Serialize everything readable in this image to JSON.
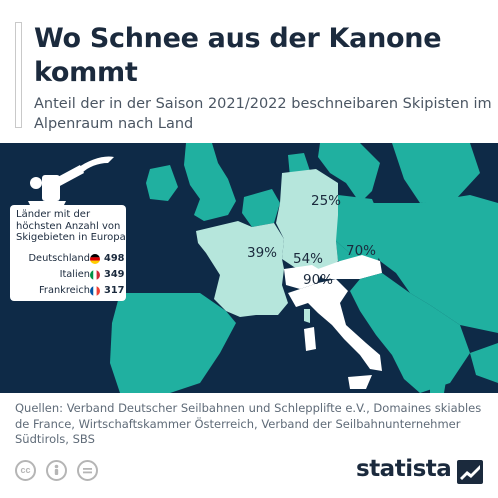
{
  "header": {
    "title": "Wo Schnee aus der Kanone kommt",
    "subtitle": "Anteil der in der Saison 2021/2022 beschneibaren Skipisten im Alpenraum nach Land"
  },
  "legend": {
    "title": "Länder mit der höchsten Anzahl von Skigebieten in Europa",
    "items": [
      {
        "country": "Deutschland",
        "count": "498"
      },
      {
        "country": "Italien",
        "count": "349"
      },
      {
        "country": "Frankreich",
        "count": "317"
      }
    ]
  },
  "chart_data": {
    "type": "map",
    "title": "Wo Schnee aus der Kanone kommt",
    "subtitle": "Anteil der in der Saison 2021/2022 beschneibaren Skipisten im Alpenraum nach Land",
    "unit": "%",
    "regions": [
      {
        "region": "Frankreich",
        "value": 39,
        "label": "39%"
      },
      {
        "region": "Deutschland",
        "value": 25,
        "label": "25%"
      },
      {
        "region": "Schweiz",
        "value": 54,
        "label": "54%"
      },
      {
        "region": "Österreich",
        "value": 70,
        "label": "70%"
      },
      {
        "region": "Italien",
        "value": 90,
        "label": "90%"
      }
    ],
    "ski_areas": [
      {
        "country": "Deutschland",
        "value": 498
      },
      {
        "country": "Italien",
        "value": 349
      },
      {
        "country": "Frankreich",
        "value": 317
      }
    ]
  },
  "source": {
    "text": "Quellen: Verband Deutscher Seilbahnen und Schlepplifte e.V., Domaines skiables de France, Wirtschaftskammer Österreich, Verband der Seilbahnunternehmer Südtirols, SBS"
  },
  "footer": {
    "logo": "statista",
    "icons": [
      "cc-icon",
      "person-icon",
      "equals-icon"
    ],
    "cc_label": "cc"
  },
  "colors": {
    "background_map": "#0e2a47",
    "land": "#20b0a0",
    "highlight_light": "#b6e6dc",
    "highlight_white": "#ffffff",
    "text_dark": "#1b2a3d"
  }
}
